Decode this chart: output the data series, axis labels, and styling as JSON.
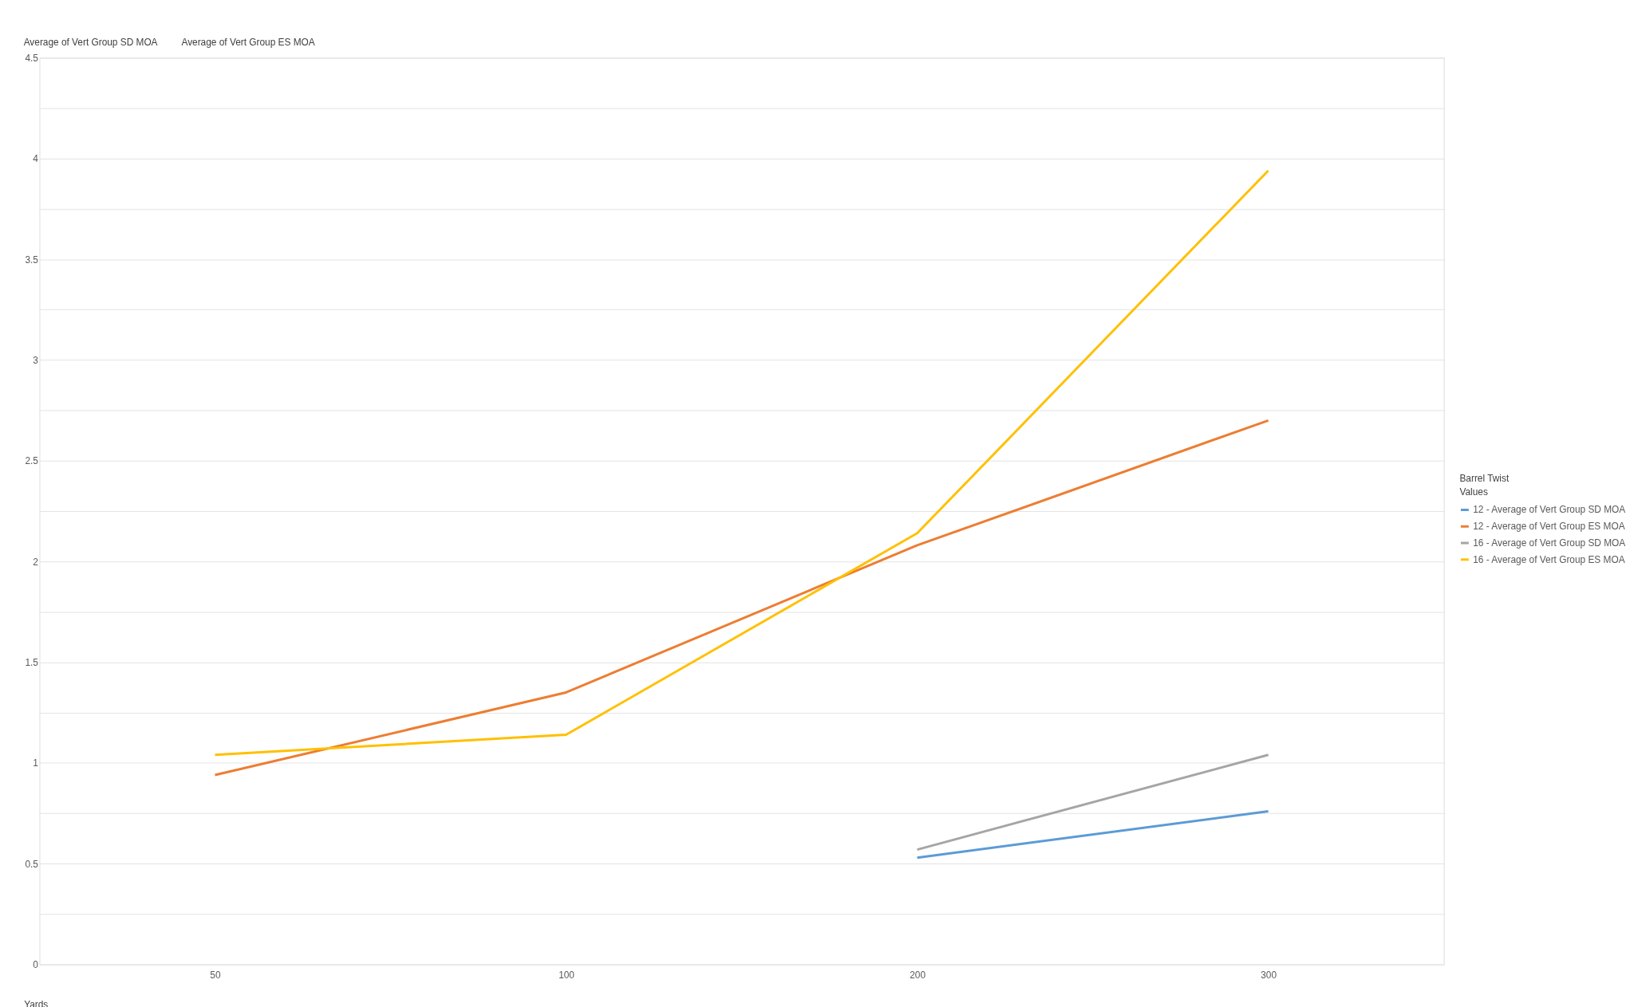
{
  "chart_data": {
    "type": "line",
    "categories": [
      "50",
      "100",
      "200",
      "300"
    ],
    "xlabel": "Yards",
    "legend_title": "Barrel Twist",
    "annotations": [
      "Average of Vert Group SD MOA",
      "Average of Vert Group ES MOA",
      "Values"
    ],
    "series": [
      {
        "name": "12 - Average of Vert Group SD MOA",
        "color": "#5b9bd5",
        "values": [
          null,
          null,
          0.53,
          0.76
        ]
      },
      {
        "name": "12 - Average of Vert Group ES MOA",
        "color": "#ed7d31",
        "values": [
          0.94,
          1.35,
          2.08,
          2.7
        ]
      },
      {
        "name": "16 - Average of Vert Group SD MOA",
        "color": "#a5a5a5",
        "values": [
          null,
          null,
          0.57,
          1.04
        ]
      },
      {
        "name": "16 - Average of Vert Group ES MOA",
        "color": "#ffc000",
        "values": [
          1.04,
          1.14,
          2.14,
          3.94
        ]
      }
    ],
    "ylim": [
      0,
      4.5
    ],
    "yticks": [
      0,
      {
        "value": 0.25,
        "label": null
      },
      0.5,
      {
        "value": 0.75,
        "label": null
      },
      1,
      {
        "value": 1.25,
        "label": null
      },
      1.5,
      {
        "value": 1.75,
        "label": null
      },
      2,
      {
        "value": 2.25,
        "label": null
      },
      2.5,
      {
        "value": 2.75,
        "label": null
      },
      3,
      {
        "value": 3.25,
        "label": null
      },
      3.5,
      {
        "value": 3.75,
        "label": null
      },
      4,
      {
        "value": 4.25,
        "label": null
      },
      4.5
    ],
    "grid": "y",
    "legend": "right",
    "marker": "none",
    "line_style": "solid"
  }
}
